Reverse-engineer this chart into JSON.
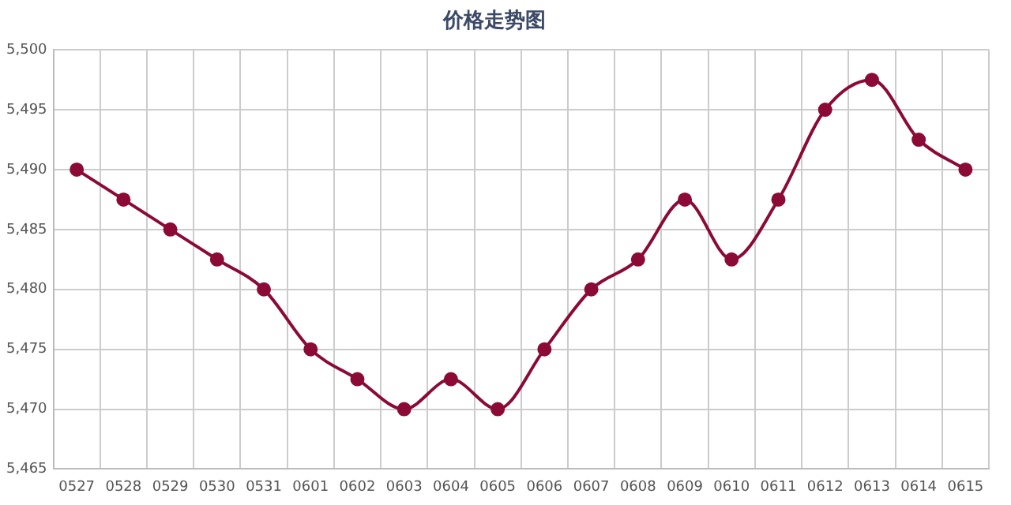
{
  "chart_data": {
    "type": "line",
    "title": "价格走势图",
    "categories": [
      "0527",
      "0528",
      "0529",
      "0530",
      "0531",
      "0601",
      "0602",
      "0603",
      "0604",
      "0605",
      "0606",
      "0607",
      "0608",
      "0609",
      "0610",
      "0611",
      "0612",
      "0613",
      "0614",
      "0615"
    ],
    "series": [
      {
        "color": "#8b0a36",
        "values": [
          5490,
          5487.5,
          5485,
          5482.5,
          5480,
          5475,
          5472.5,
          5470,
          5472.5,
          5470,
          5475,
          5480,
          5482.5,
          5487.5,
          5482.5,
          5487.5,
          5495,
          5497.5,
          5492.5,
          5490
        ]
      }
    ],
    "ylim": [
      5465,
      5500
    ],
    "yticks": [
      {
        "value": 5465,
        "label": "5,465"
      },
      {
        "value": 5470,
        "label": "5,470"
      },
      {
        "value": 5475,
        "label": "5,475"
      },
      {
        "value": 5480,
        "label": "5,480"
      },
      {
        "value": 5485,
        "label": "5,485"
      },
      {
        "value": 5490,
        "label": "5,490"
      },
      {
        "value": 5495,
        "label": "5,495"
      },
      {
        "value": 5500,
        "label": "5,500"
      }
    ],
    "grid": true,
    "legend": false,
    "marker": "circle",
    "line_style": "solid"
  }
}
